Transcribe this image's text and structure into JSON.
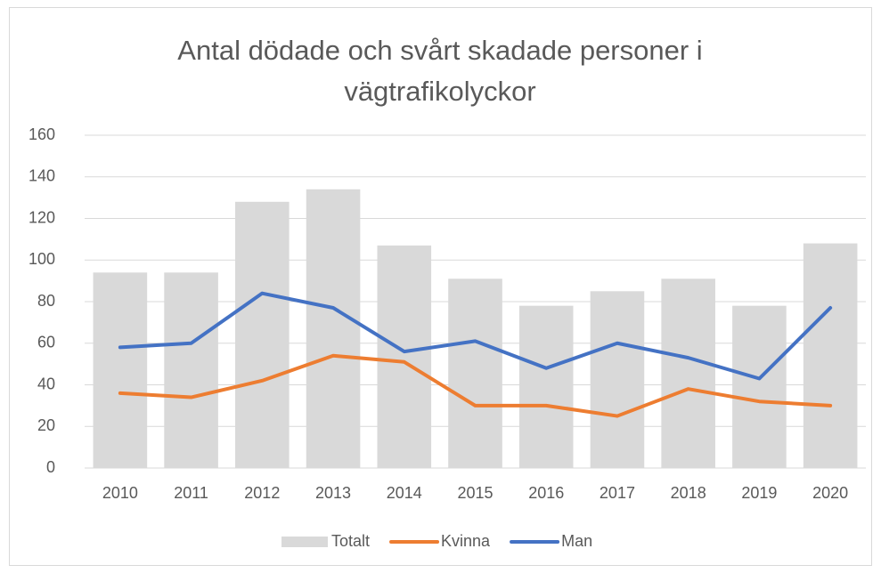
{
  "chart_data": {
    "type": "bar",
    "title": "Antal dödade och svårt skadade personer i vägtrafikolyckor",
    "categories": [
      "2010",
      "2011",
      "2012",
      "2013",
      "2014",
      "2015",
      "2016",
      "2017",
      "2018",
      "2019",
      "2020"
    ],
    "series": [
      {
        "name": "Totalt",
        "type": "bar",
        "color": "#d9d9d9",
        "values": [
          94,
          94,
          128,
          134,
          107,
          91,
          78,
          85,
          91,
          78,
          108
        ]
      },
      {
        "name": "Kvinna",
        "type": "line",
        "color": "#ed7d31",
        "values": [
          36,
          34,
          42,
          54,
          51,
          30,
          30,
          25,
          38,
          32,
          30
        ]
      },
      {
        "name": "Man",
        "type": "line",
        "color": "#4472c4",
        "values": [
          58,
          60,
          84,
          77,
          56,
          61,
          48,
          60,
          53,
          43,
          77
        ]
      }
    ],
    "ylim": [
      0,
      160
    ],
    "yticks": [
      0,
      20,
      40,
      60,
      80,
      100,
      120,
      140,
      160
    ],
    "grid": true,
    "legend": "bottom"
  }
}
